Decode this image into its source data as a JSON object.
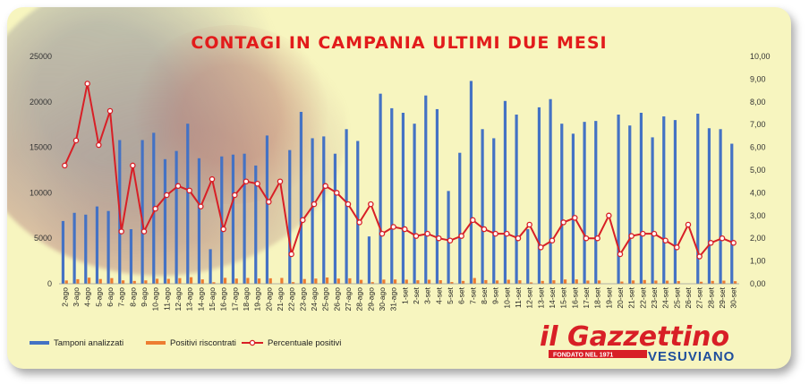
{
  "chart_data": {
    "type": "bar",
    "title": "CONTAGI IN CAMPANIA ULTIMI DUE MESI",
    "ylim_left": [
      0,
      25000
    ],
    "left_ticks": [
      "0",
      "5000",
      "10000",
      "15000",
      "20000",
      "25000"
    ],
    "ylim_right": [
      0,
      10
    ],
    "right_ticks": [
      "0,00",
      "1,00",
      "2,00",
      "3,00",
      "4,00",
      "5,00",
      "6,00",
      "7,00",
      "8,00",
      "9,00",
      "10,00"
    ],
    "categories": [
      "2-ago",
      "3-ago",
      "4-ago",
      "5-ago",
      "6-ago",
      "7-ago",
      "8-ago",
      "9-ago",
      "10-ago",
      "11-ago",
      "12-ago",
      "13-ago",
      "14-ago",
      "15-ago",
      "16-ago",
      "17-ago",
      "18-ago",
      "19-ago",
      "20-ago",
      "21-ago",
      "22-ago",
      "23-ago",
      "24-ago",
      "25-ago",
      "26-ago",
      "27-ago",
      "28-ago",
      "29-ago",
      "30-ago",
      "31-ago",
      "1-set",
      "2-set",
      "3-set",
      "4-set",
      "5-set",
      "6-set",
      "7-set",
      "8-set",
      "9-set",
      "10-set",
      "11-set",
      "12-set",
      "13-set",
      "14-set",
      "15-set",
      "16-set",
      "17-set",
      "18-set",
      "19-set",
      "20-set",
      "21-set",
      "22-set",
      "23-set",
      "24-set",
      "25-set",
      "26-set",
      "27-set",
      "28-set",
      "29-set",
      "30-set"
    ],
    "series": [
      {
        "name": "Tamponi analizzati",
        "type": "bar",
        "axis": "left",
        "color": "#4472c4",
        "values": [
          6900,
          7800,
          7600,
          8500,
          8000,
          15800,
          6000,
          15800,
          16600,
          13700,
          14600,
          17600,
          13800,
          3800,
          14000,
          14200,
          14300,
          13000,
          16300,
          0,
          14700,
          18900,
          16000,
          16200,
          14300,
          17000,
          15700,
          5200,
          20900,
          19300,
          18800,
          17600,
          20700,
          19200,
          10200,
          14400,
          22300,
          17000,
          16000,
          20100,
          18600,
          6000,
          19400,
          20300,
          17600,
          16500,
          17800,
          17900,
          0,
          18600,
          17400,
          18800,
          16100,
          18400,
          18000,
          0,
          18700,
          17100,
          17000,
          15400
        ]
      },
      {
        "name": "Positivi riscontrati",
        "type": "bar",
        "axis": "left",
        "color": "#ed7d31",
        "values": [
          360,
          500,
          670,
          520,
          620,
          370,
          310,
          370,
          550,
          540,
          620,
          720,
          480,
          170,
          650,
          570,
          640,
          580,
          600,
          640,
          180,
          520,
          570,
          690,
          570,
          600,
          430,
          180,
          460,
          470,
          450,
          380,
          440,
          390,
          190,
          310,
          630,
          400,
          360,
          440,
          380,
          150,
          310,
          380,
          470,
          480,
          350,
          360,
          0,
          240,
          360,
          410,
          350,
          340,
          290,
          0,
          220,
          310,
          340,
          280
        ]
      },
      {
        "name": "Percentuale positivi",
        "type": "line",
        "axis": "right",
        "color": "#d81f26",
        "values": [
          5.2,
          6.3,
          8.8,
          6.1,
          7.6,
          2.3,
          5.2,
          2.3,
          3.3,
          3.9,
          4.3,
          4.1,
          3.4,
          4.6,
          2.4,
          3.9,
          4.5,
          4.4,
          3.6,
          4.5,
          1.3,
          2.8,
          3.5,
          4.3,
          4.0,
          3.5,
          2.7,
          3.5,
          2.2,
          2.5,
          2.4,
          2.1,
          2.2,
          2.0,
          1.9,
          2.1,
          2.8,
          2.4,
          2.2,
          2.2,
          2.0,
          2.6,
          1.6,
          1.9,
          2.7,
          2.9,
          2.0,
          2.0,
          3.0,
          1.3,
          2.1,
          2.2,
          2.2,
          1.9,
          1.6,
          2.6,
          1.2,
          1.8,
          2.0,
          1.8
        ]
      }
    ],
    "legend_position": "bottom-left",
    "grid": false
  },
  "logo": {
    "name": "il Gazzettino",
    "tagline": "FONDATO NEL 1971",
    "subtitle": "VESUVIANO"
  }
}
